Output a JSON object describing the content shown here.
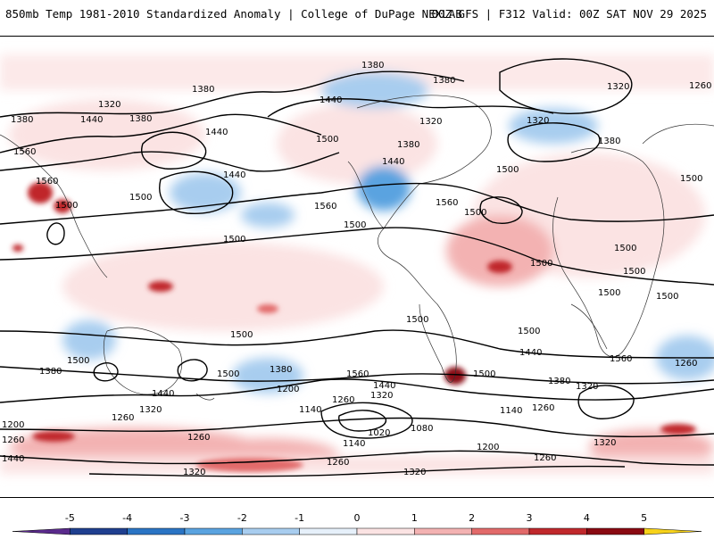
{
  "header": {
    "title_left": "850mb Temp 1981-2010 Standardized Anomaly | College of DuPage NEXLAB",
    "title_right": "00Z GFS | F312 Valid: 00Z SAT NOV 29 2025"
  },
  "map": {
    "variable": "850mb Temp Standardized Anomaly",
    "contour_labels": [
      "1380",
      "1440",
      "1320",
      "1260",
      "1500",
      "1560",
      "1200",
      "1140",
      "1080",
      "1020"
    ]
  },
  "colorbar": {
    "ticks": [
      "-5",
      "-4",
      "-3",
      "-2",
      "-1",
      "0",
      "1",
      "2",
      "3",
      "4",
      "5"
    ],
    "colors": [
      "#5a2a8c",
      "#1f3f8f",
      "#2a74c4",
      "#5aa3e0",
      "#a8cdef",
      "#e6f0fa",
      "#fbe3e3",
      "#f3b2b2",
      "#e26a6a",
      "#c0282c",
      "#8a0a12",
      "#f7d21a"
    ]
  }
}
